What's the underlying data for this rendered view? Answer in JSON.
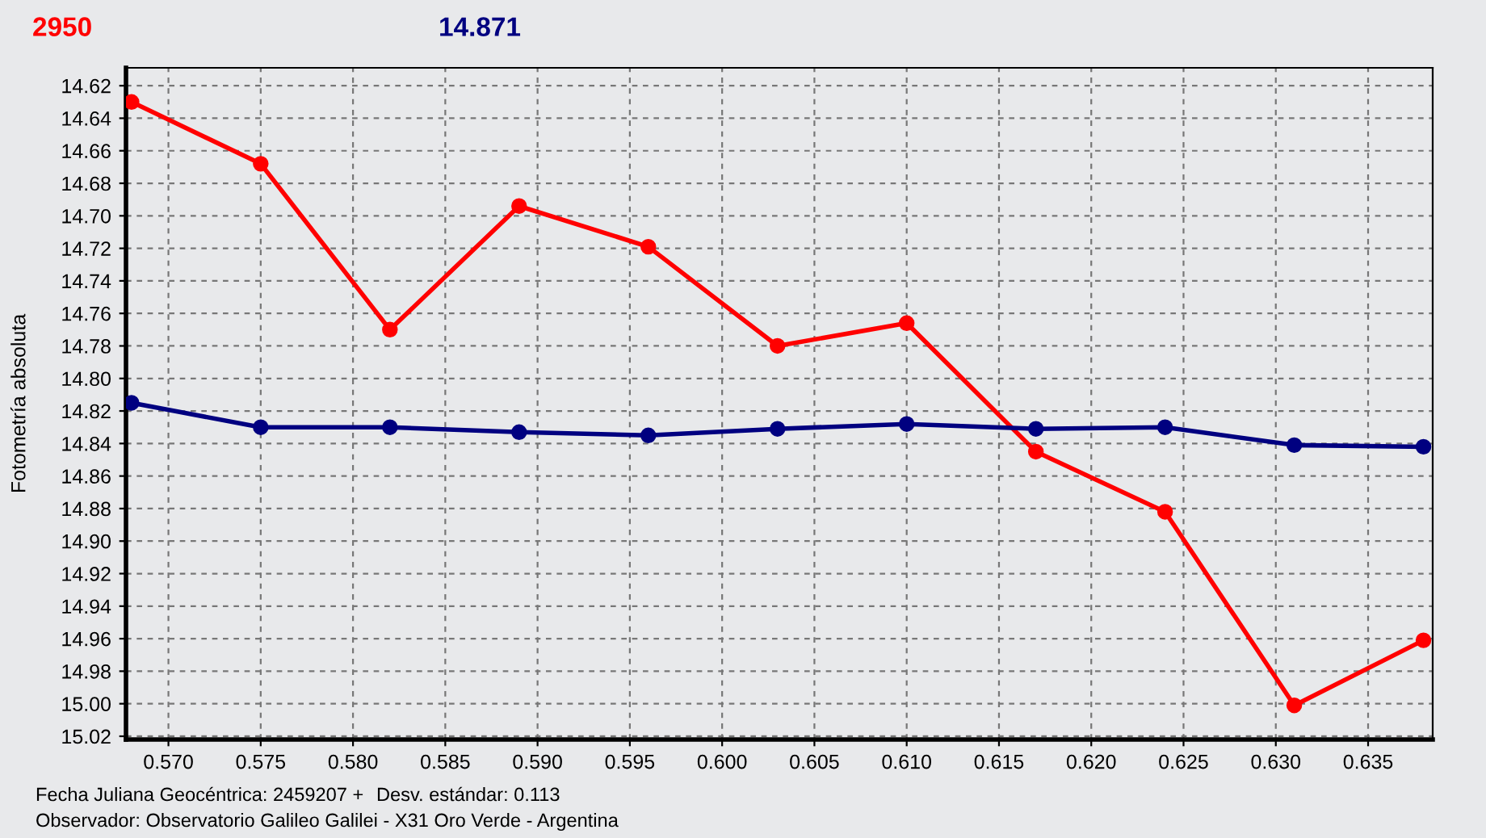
{
  "chart_data": {
    "type": "line",
    "title": "2950",
    "subtitle": "14.871",
    "ylabel": "Fotometría absoluta",
    "x": [
      0.568,
      0.575,
      0.582,
      0.589,
      0.596,
      0.603,
      0.61,
      0.617,
      0.624,
      0.631,
      0.638
    ],
    "series": [
      {
        "color": "#ff0000",
        "values": [
          14.63,
          14.668,
          14.77,
          14.694,
          14.719,
          14.78,
          14.766,
          14.845,
          14.882,
          15.001,
          14.961
        ]
      },
      {
        "color": "#000080",
        "values": [
          14.815,
          14.83,
          14.83,
          14.833,
          14.835,
          14.831,
          14.828,
          14.831,
          14.83,
          14.841,
          14.842
        ]
      }
    ],
    "xlim": [
      0.5677,
      0.6385
    ],
    "ylim": [
      15.022,
      14.609
    ],
    "xticks": [
      {
        "value": 0.57,
        "label": "0.570"
      },
      {
        "value": 0.575,
        "label": "0.575"
      },
      {
        "value": 0.58,
        "label": "0.580"
      },
      {
        "value": 0.585,
        "label": "0.585"
      },
      {
        "value": 0.59,
        "label": "0.590"
      },
      {
        "value": 0.595,
        "label": "0.595"
      },
      {
        "value": 0.6,
        "label": "0.600"
      },
      {
        "value": 0.605,
        "label": "0.605"
      },
      {
        "value": 0.61,
        "label": "0.610"
      },
      {
        "value": 0.615,
        "label": "0.615"
      },
      {
        "value": 0.62,
        "label": "0.620"
      },
      {
        "value": 0.625,
        "label": "0.625"
      },
      {
        "value": 0.63,
        "label": "0.630"
      },
      {
        "value": 0.635,
        "label": "0.635"
      }
    ],
    "yticks": [
      {
        "value": 14.62,
        "label": "14.62"
      },
      {
        "value": 14.64,
        "label": "14.64"
      },
      {
        "value": 14.66,
        "label": "14.66"
      },
      {
        "value": 14.68,
        "label": "14.68"
      },
      {
        "value": 14.7,
        "label": "14.70"
      },
      {
        "value": 14.72,
        "label": "14.72"
      },
      {
        "value": 14.74,
        "label": "14.74"
      },
      {
        "value": 14.76,
        "label": "14.76"
      },
      {
        "value": 14.78,
        "label": "14.78"
      },
      {
        "value": 14.8,
        "label": "14.80"
      },
      {
        "value": 14.82,
        "label": "14.82"
      },
      {
        "value": 14.84,
        "label": "14.84"
      },
      {
        "value": 14.86,
        "label": "14.86"
      },
      {
        "value": 14.88,
        "label": "14.88"
      },
      {
        "value": 14.9,
        "label": "14.90"
      },
      {
        "value": 14.92,
        "label": "14.92"
      },
      {
        "value": 14.94,
        "label": "14.94"
      },
      {
        "value": 14.96,
        "label": "14.96"
      },
      {
        "value": 14.98,
        "label": "14.98"
      },
      {
        "value": 15.0,
        "label": "15.00"
      },
      {
        "value": 15.02,
        "label": "15.02"
      }
    ],
    "grid": true,
    "marker": "circle",
    "line_style": "solid",
    "annotations": [
      "Fecha Juliana Geocéntrica: 2459207 +",
      "Desv. estándar: 0.113",
      "Observador: Observatorio Galileo Galilei - X31 Oro Verde - Argentina"
    ]
  }
}
